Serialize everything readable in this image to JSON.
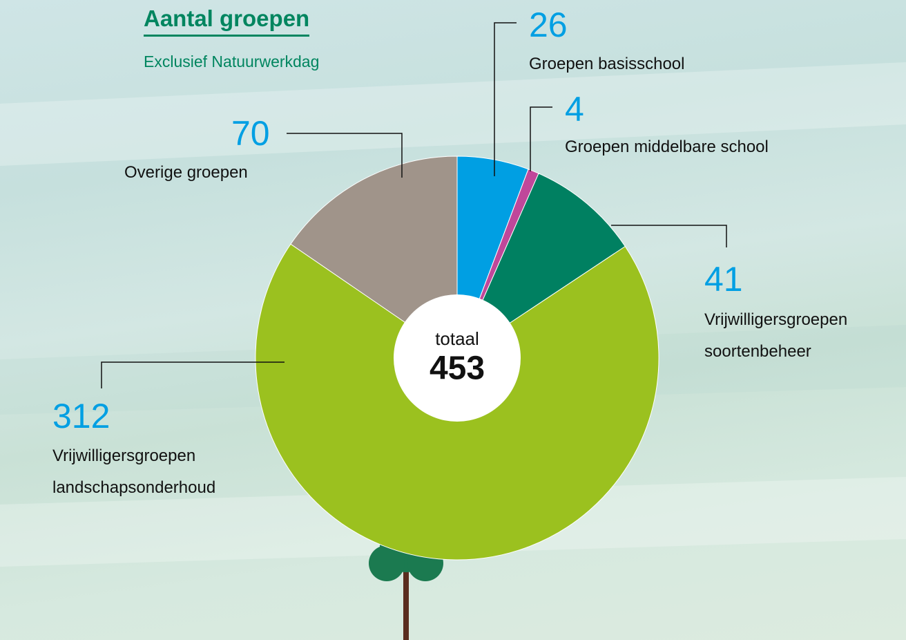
{
  "chart_data": {
    "type": "donut",
    "title": "Aantal groepen",
    "subtitle": "Exclusief Natuurwerkdag",
    "center_label": "totaal",
    "total": 453,
    "categories": [
      "Groepen basisschool",
      "Groepen middelbare school",
      "Vrijwilligersgroepen soortenbeheer",
      "Vrijwilligersgroepen landschapsonderhoud",
      "Overige groepen"
    ],
    "values": [
      26,
      4,
      41,
      312,
      70
    ],
    "colors": [
      "#009fe3",
      "#c0479a",
      "#008061",
      "#9bc11f",
      "#a0948a"
    ]
  }
}
